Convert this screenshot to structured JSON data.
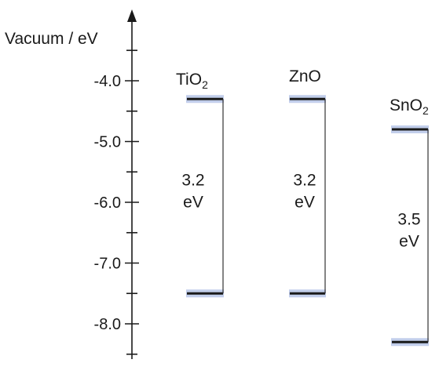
{
  "chart_data": {
    "type": "energy-level-diagram",
    "axis": {
      "title": "Vacuum / eV",
      "ticks": [
        -4.0,
        -5.0,
        -6.0,
        -7.0,
        -8.0
      ],
      "tick_labels": [
        "-4.0",
        "-5.0",
        "-6.0",
        "-7.0",
        "-8.0"
      ],
      "range": [
        -8.6,
        -2.5
      ]
    },
    "materials": [
      {
        "id": "tio2",
        "base": "TiO",
        "sub": "2",
        "cb": -4.3,
        "vb": -7.5,
        "gap_value": "3.2",
        "gap_unit": "eV"
      },
      {
        "id": "zno",
        "base": "ZnO",
        "sub": "",
        "cb": -4.3,
        "vb": -7.5,
        "gap_value": "3.2",
        "gap_unit": "eV"
      },
      {
        "id": "sno2",
        "base": "SnO",
        "sub": "2",
        "cb": -4.8,
        "vb": -8.3,
        "gap_value": "3.5",
        "gap_unit": "eV"
      }
    ],
    "colors": {
      "line": "#1a1a1a",
      "band_glow": "#b7c5e8",
      "bracket": "#333333"
    }
  }
}
